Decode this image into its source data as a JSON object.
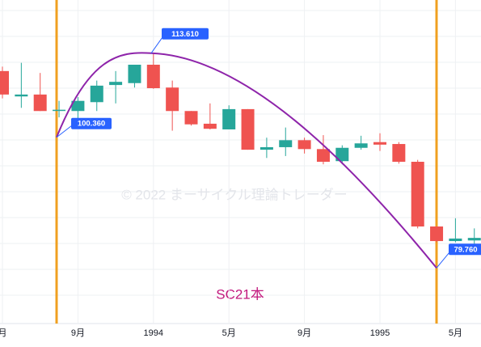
{
  "chart_data": {
    "type": "candlestick",
    "categories": [
      "月",
      null,
      null,
      null,
      "9月",
      null,
      null,
      null,
      "1994",
      null,
      null,
      null,
      "5月",
      null,
      null,
      null,
      "9月",
      null,
      null,
      null,
      "1995",
      null,
      null,
      null,
      "5月",
      null
    ],
    "open": [
      110.8,
      106.8,
      107.1,
      104.6,
      104.5,
      105.9,
      108.6,
      108.9,
      111.8,
      108.2,
      104.5,
      102.5,
      101.6,
      104.8,
      98.4,
      98.8,
      99.9,
      98.5,
      96.6,
      98.7,
      99.6,
      99.3,
      96.5,
      86.3,
      84.0,
      84.1
    ],
    "high": [
      111.5,
      112.1,
      110.5,
      106.1,
      106.7,
      109.3,
      110.8,
      111.8,
      113.5,
      109.3,
      104.5,
      105.7,
      105.4,
      104.8,
      100.3,
      101.9,
      100.3,
      100.7,
      99.1,
      100.6,
      101.0,
      99.6,
      96.8,
      86.3,
      87.6,
      86.0
    ],
    "low": [
      106.5,
      105.0,
      104.5,
      103.5,
      102.9,
      104.5,
      105.7,
      108.2,
      108.0,
      101.4,
      102.2,
      101.6,
      101.6,
      98.4,
      97.1,
      97.4,
      97.8,
      96.1,
      96.1,
      98.4,
      98.2,
      96.2,
      86.0,
      83.8,
      83.8,
      83.1
    ],
    "close": [
      107.1,
      107.1,
      104.5,
      104.7,
      106.1,
      108.5,
      109.1,
      111.8,
      108.1,
      104.5,
      102.4,
      101.7,
      104.8,
      98.4,
      98.8,
      99.9,
      98.5,
      96.5,
      98.7,
      99.4,
      99.2,
      96.5,
      86.3,
      84.0,
      84.4,
      84.5
    ],
    "up_color": "#26a69a",
    "down_color": "#ef5350",
    "ylim": [
      71.0,
      122.0
    ],
    "pivots": [
      {
        "value": 100.36,
        "label": "100.360"
      },
      {
        "value": 113.61,
        "label": "113.610"
      },
      {
        "value": 79.76,
        "label": "79.760"
      }
    ],
    "annotation": "SC21本",
    "watermark": "© 2022 まーサイクル理論トレーダー"
  }
}
